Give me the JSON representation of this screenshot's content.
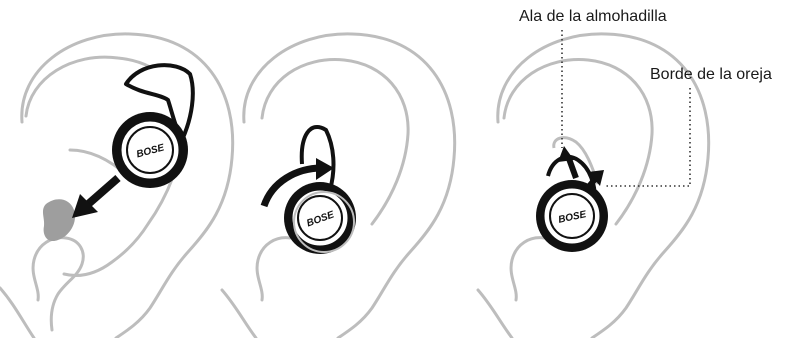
{
  "labels": {
    "ear_tip_wing": "Ala de la almohadilla",
    "ear_edge": "Borde de la oreja"
  },
  "earbud_logo": "BOSE",
  "colors": {
    "ear_outline": "#bdbdbd",
    "earbud": "#111111",
    "ear_canal_fill": "#9e9e9e",
    "arrow": "#111111",
    "leader_line": "#333333"
  }
}
